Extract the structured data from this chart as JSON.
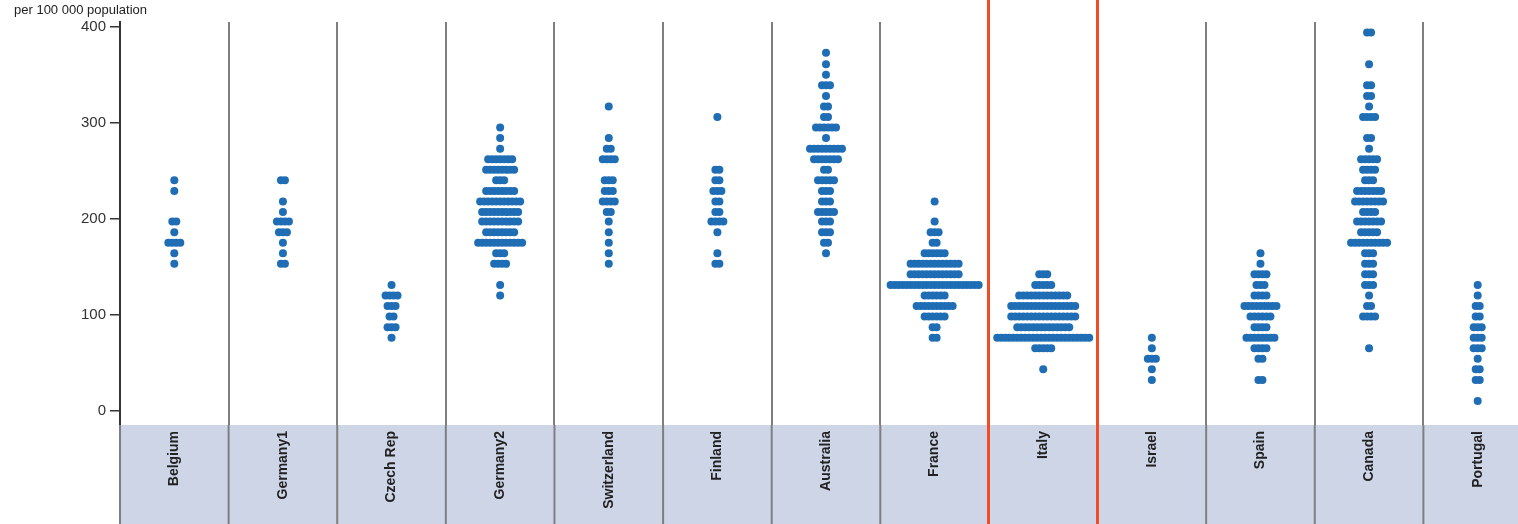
{
  "chart_data": {
    "type": "scatter",
    "ylabel": "per 100 000 population",
    "marker": "circle",
    "grid": "x",
    "categories": [
      "Belgium",
      "Germany1",
      "Czech Rep",
      "Germany2",
      "Switzerland",
      "Finland",
      "Australia",
      "France",
      "Italy",
      "Israel",
      "Spain",
      "Canada",
      "Portugal"
    ],
    "ylim": [
      -15,
      405
    ],
    "yticks": [
      0,
      100,
      200,
      300,
      400
    ],
    "series": [
      {
        "color": "#1f6db4",
        "x": [
          "Belgium",
          "Belgium",
          "Belgium",
          "Belgium",
          "Belgium",
          "Belgium",
          "Belgium",
          "Belgium",
          "Belgium",
          "Belgium",
          "Belgium"
        ],
        "values": [
          240,
          229,
          197,
          197,
          186,
          175,
          175,
          175,
          175,
          164,
          153
        ]
      },
      {
        "color": "#1f6db4",
        "x": [
          "Germany1",
          "Germany1",
          "Germany1",
          "Germany1",
          "Germany1",
          "Germany1",
          "Germany1",
          "Germany1",
          "Germany1",
          "Germany1",
          "Germany1",
          "Germany1",
          "Germany1",
          "Germany1",
          "Germany1"
        ],
        "values": [
          240,
          240,
          218,
          207,
          197,
          197,
          197,
          197,
          186,
          186,
          186,
          175,
          164,
          153,
          153
        ]
      },
      {
        "color": "#1f6db4",
        "x": [
          "Czech Rep",
          "Czech Rep",
          "Czech Rep",
          "Czech Rep",
          "Czech Rep",
          "Czech Rep",
          "Czech Rep",
          "Czech Rep",
          "Czech Rep",
          "Czech Rep",
          "Czech Rep",
          "Czech Rep",
          "Czech Rep",
          "Czech Rep"
        ],
        "values": [
          131,
          120,
          120,
          120,
          120,
          109,
          109,
          109,
          98,
          98,
          87,
          87,
          87,
          76
        ]
      },
      {
        "color": "#1f6db4",
        "x": [
          "Germany2",
          "Germany2",
          "Germany2",
          "Germany2",
          "Germany2",
          "Germany2",
          "Germany2",
          "Germany2",
          "Germany2",
          "Germany2",
          "Germany2",
          "Germany2",
          "Germany2",
          "Germany2",
          "Germany2",
          "Germany2",
          "Germany2",
          "Germany2",
          "Germany2",
          "Germany2",
          "Germany2",
          "Germany2",
          "Germany2",
          "Germany2",
          "Germany2",
          "Germany2",
          "Germany2",
          "Germany2",
          "Germany2",
          "Germany2",
          "Germany2",
          "Germany2",
          "Germany2",
          "Germany2",
          "Germany2",
          "Germany2",
          "Germany2",
          "Germany2",
          "Germany2",
          "Germany2",
          "Germany2",
          "Germany2",
          "Germany2",
          "Germany2",
          "Germany2",
          "Germany2",
          "Germany2",
          "Germany2",
          "Germany2",
          "Germany2",
          "Germany2",
          "Germany2",
          "Germany2",
          "Germany2",
          "Germany2",
          "Germany2",
          "Germany2",
          "Germany2",
          "Germany2",
          "Germany2",
          "Germany2",
          "Germany2",
          "Germany2",
          "Germany2",
          "Germany2",
          "Germany2",
          "Germany2",
          "Germany2",
          "Germany2",
          "Germany2",
          "Germany2",
          "Germany2",
          "Germany2",
          "Germany2",
          "Germany2",
          "Germany2",
          "Germany2",
          "Germany2",
          "Germany2",
          "Germany2",
          "Germany2",
          "Germany2",
          "Germany2",
          "Germany2",
          "Germany2",
          "Germany2",
          "Germany2",
          "Germany2",
          "Germany2"
        ],
        "values": [
          295,
          284,
          273,
          262,
          262,
          262,
          262,
          262,
          262,
          262,
          251,
          251,
          251,
          251,
          251,
          251,
          251,
          251,
          240,
          240,
          240,
          229,
          229,
          229,
          229,
          229,
          229,
          229,
          229,
          218,
          218,
          218,
          218,
          218,
          218,
          218,
          218,
          218,
          218,
          218,
          207,
          207,
          207,
          207,
          207,
          207,
          207,
          207,
          207,
          207,
          197,
          197,
          197,
          197,
          197,
          197,
          197,
          197,
          197,
          197,
          186,
          186,
          186,
          186,
          186,
          186,
          186,
          186,
          175,
          175,
          175,
          175,
          175,
          175,
          175,
          175,
          175,
          175,
          175,
          175,
          164,
          164,
          164,
          153,
          153,
          153,
          153,
          131,
          120
        ]
      },
      {
        "color": "#1f6db4",
        "x": [
          "Switzerland",
          "Switzerland",
          "Switzerland",
          "Switzerland",
          "Switzerland",
          "Switzerland",
          "Switzerland",
          "Switzerland",
          "Switzerland",
          "Switzerland",
          "Switzerland",
          "Switzerland",
          "Switzerland",
          "Switzerland",
          "Switzerland",
          "Switzerland",
          "Switzerland",
          "Switzerland",
          "Switzerland",
          "Switzerland",
          "Switzerland",
          "Switzerland",
          "Switzerland",
          "Switzerland",
          "Switzerland"
        ],
        "values": [
          317,
          284,
          273,
          273,
          262,
          262,
          262,
          262,
          240,
          240,
          240,
          229,
          229,
          229,
          218,
          218,
          218,
          218,
          207,
          207,
          197,
          186,
          175,
          164,
          153
        ]
      },
      {
        "color": "#1f6db4",
        "x": [
          "Finland",
          "Finland",
          "Finland",
          "Finland",
          "Finland",
          "Finland",
          "Finland",
          "Finland",
          "Finland",
          "Finland",
          "Finland",
          "Finland",
          "Finland",
          "Finland",
          "Finland",
          "Finland",
          "Finland",
          "Finland",
          "Finland",
          "Finland"
        ],
        "values": [
          306,
          251,
          251,
          240,
          240,
          229,
          229,
          229,
          218,
          218,
          207,
          207,
          197,
          197,
          197,
          197,
          186,
          164,
          153,
          153
        ]
      },
      {
        "color": "#1f6db4",
        "x": [
          "Australia",
          "Australia",
          "Australia",
          "Australia",
          "Australia",
          "Australia",
          "Australia",
          "Australia",
          "Australia",
          "Australia",
          "Australia",
          "Australia",
          "Australia",
          "Australia",
          "Australia",
          "Australia",
          "Australia",
          "Australia",
          "Australia",
          "Australia",
          "Australia",
          "Australia",
          "Australia",
          "Australia",
          "Australia",
          "Australia",
          "Australia",
          "Australia",
          "Australia",
          "Australia",
          "Australia",
          "Australia",
          "Australia",
          "Australia",
          "Australia",
          "Australia",
          "Australia",
          "Australia",
          "Australia",
          "Australia",
          "Australia",
          "Australia",
          "Australia",
          "Australia",
          "Australia",
          "Australia",
          "Australia",
          "Australia",
          "Australia",
          "Australia",
          "Australia",
          "Australia",
          "Australia",
          "Australia",
          "Australia",
          "Australia",
          "Australia",
          "Australia",
          "Australia",
          "Australia",
          "Australia"
        ],
        "values": [
          373,
          361,
          350,
          339,
          339,
          339,
          328,
          317,
          317,
          306,
          306,
          295,
          295,
          295,
          295,
          295,
          295,
          284,
          273,
          273,
          273,
          273,
          273,
          273,
          273,
          273,
          273,
          262,
          262,
          262,
          262,
          262,
          262,
          262,
          251,
          251,
          240,
          240,
          240,
          240,
          240,
          229,
          229,
          229,
          218,
          218,
          218,
          207,
          207,
          207,
          207,
          207,
          197,
          197,
          197,
          186,
          186,
          186,
          175,
          175,
          164
        ]
      },
      {
        "color": "#1f6db4",
        "x": [
          "France",
          "France",
          "France",
          "France",
          "France",
          "France",
          "France",
          "France",
          "France",
          "France",
          "France",
          "France",
          "France",
          "France",
          "France",
          "France",
          "France",
          "France",
          "France",
          "France",
          "France",
          "France",
          "France",
          "France",
          "France",
          "France",
          "France",
          "France",
          "France",
          "France",
          "France",
          "France",
          "France",
          "France",
          "France",
          "France",
          "France",
          "France",
          "France",
          "France",
          "France",
          "France",
          "France",
          "France",
          "France",
          "France",
          "France",
          "France",
          "France",
          "France",
          "France",
          "France",
          "France",
          "France",
          "France",
          "France",
          "France",
          "France",
          "France",
          "France",
          "France",
          "France",
          "France",
          "France",
          "France",
          "France",
          "France",
          "France",
          "France",
          "France",
          "France",
          "France",
          "France",
          "France",
          "France",
          "France",
          "France",
          "France",
          "France",
          "France",
          "France",
          "France",
          "France",
          "France",
          "France",
          "France",
          "France",
          "France"
        ],
        "values": [
          218,
          197,
          186,
          186,
          186,
          175,
          175,
          164,
          164,
          164,
          164,
          164,
          164,
          153,
          153,
          153,
          153,
          153,
          153,
          153,
          153,
          153,
          153,
          153,
          153,
          153,
          142,
          142,
          142,
          142,
          142,
          142,
          142,
          142,
          142,
          142,
          142,
          142,
          142,
          131,
          131,
          131,
          131,
          131,
          131,
          131,
          131,
          131,
          131,
          131,
          131,
          131,
          131,
          131,
          131,
          131,
          131,
          131,
          131,
          131,
          131,
          131,
          120,
          120,
          120,
          120,
          120,
          120,
          109,
          109,
          109,
          109,
          109,
          109,
          109,
          109,
          109,
          109,
          98,
          98,
          98,
          98,
          98,
          98,
          87,
          87,
          76,
          76
        ]
      },
      {
        "color": "#1f6db4",
        "x": [
          "Italy",
          "Italy",
          "Italy",
          "Italy",
          "Italy",
          "Italy",
          "Italy",
          "Italy",
          "Italy",
          "Italy",
          "Italy",
          "Italy",
          "Italy",
          "Italy",
          "Italy",
          "Italy",
          "Italy",
          "Italy",
          "Italy",
          "Italy",
          "Italy",
          "Italy",
          "Italy",
          "Italy",
          "Italy",
          "Italy",
          "Italy",
          "Italy",
          "Italy",
          "Italy",
          "Italy",
          "Italy",
          "Italy",
          "Italy",
          "Italy",
          "Italy",
          "Italy",
          "Italy",
          "Italy",
          "Italy",
          "Italy",
          "Italy",
          "Italy",
          "Italy",
          "Italy",
          "Italy",
          "Italy",
          "Italy",
          "Italy",
          "Italy",
          "Italy",
          "Italy",
          "Italy",
          "Italy",
          "Italy",
          "Italy",
          "Italy",
          "Italy",
          "Italy",
          "Italy",
          "Italy",
          "Italy",
          "Italy",
          "Italy",
          "Italy",
          "Italy",
          "Italy",
          "Italy",
          "Italy",
          "Italy",
          "Italy",
          "Italy",
          "Italy",
          "Italy",
          "Italy",
          "Italy",
          "Italy",
          "Italy",
          "Italy",
          "Italy",
          "Italy",
          "Italy",
          "Italy",
          "Italy",
          "Italy",
          "Italy",
          "Italy",
          "Italy",
          "Italy",
          "Italy",
          "Italy",
          "Italy",
          "Italy",
          "Italy",
          "Italy",
          "Italy",
          "Italy",
          "Italy",
          "Italy"
        ],
        "values": [
          142,
          142,
          142,
          131,
          131,
          131,
          131,
          131,
          120,
          120,
          120,
          120,
          120,
          120,
          120,
          120,
          120,
          120,
          120,
          120,
          120,
          109,
          109,
          109,
          109,
          109,
          109,
          109,
          109,
          109,
          109,
          109,
          109,
          109,
          109,
          109,
          109,
          109,
          98,
          98,
          98,
          98,
          98,
          98,
          98,
          98,
          98,
          98,
          98,
          98,
          98,
          98,
          98,
          98,
          98,
          87,
          87,
          87,
          87,
          87,
          87,
          87,
          87,
          87,
          87,
          87,
          87,
          87,
          87,
          76,
          76,
          76,
          76,
          76,
          76,
          76,
          76,
          76,
          76,
          76,
          76,
          76,
          76,
          76,
          76,
          76,
          76,
          76,
          76,
          76,
          76,
          76,
          76,
          65,
          65,
          65,
          65,
          65,
          43
        ]
      },
      {
        "color": "#1f6db4",
        "x": [
          "Israel",
          "Israel",
          "Israel",
          "Israel",
          "Israel",
          "Israel",
          "Israel"
        ],
        "values": [
          76,
          65,
          54,
          54,
          54,
          43,
          32
        ]
      },
      {
        "color": "#1f6db4",
        "x": [
          "Spain",
          "Spain",
          "Spain",
          "Spain",
          "Spain",
          "Spain",
          "Spain",
          "Spain",
          "Spain",
          "Spain",
          "Spain",
          "Spain",
          "Spain",
          "Spain",
          "Spain",
          "Spain",
          "Spain",
          "Spain",
          "Spain",
          "Spain",
          "Spain",
          "Spain",
          "Spain",
          "Spain",
          "Spain",
          "Spain",
          "Spain",
          "Spain",
          "Spain",
          "Spain",
          "Spain",
          "Spain",
          "Spain",
          "Spain",
          "Spain",
          "Spain",
          "Spain",
          "Spain",
          "Spain",
          "Spain",
          "Spain",
          "Spain",
          "Spain",
          "Spain",
          "Spain",
          "Spain",
          "Spain",
          "Spain"
        ],
        "values": [
          164,
          153,
          142,
          142,
          142,
          142,
          131,
          131,
          131,
          120,
          120,
          120,
          120,
          109,
          109,
          109,
          109,
          109,
          109,
          109,
          109,
          109,
          98,
          98,
          98,
          98,
          98,
          98,
          87,
          87,
          87,
          87,
          76,
          76,
          76,
          76,
          76,
          76,
          76,
          76,
          65,
          65,
          65,
          65,
          54,
          54,
          32,
          32
        ]
      },
      {
        "color": "#1f6db4",
        "x": [
          "Canada",
          "Canada",
          "Canada",
          "Canada",
          "Canada",
          "Canada",
          "Canada",
          "Canada",
          "Canada",
          "Canada",
          "Canada",
          "Canada",
          "Canada",
          "Canada",
          "Canada",
          "Canada",
          "Canada",
          "Canada",
          "Canada",
          "Canada",
          "Canada",
          "Canada",
          "Canada",
          "Canada",
          "Canada",
          "Canada",
          "Canada",
          "Canada",
          "Canada",
          "Canada",
          "Canada",
          "Canada",
          "Canada",
          "Canada",
          "Canada",
          "Canada",
          "Canada",
          "Canada",
          "Canada",
          "Canada",
          "Canada",
          "Canada",
          "Canada",
          "Canada",
          "Canada",
          "Canada",
          "Canada",
          "Canada",
          "Canada",
          "Canada",
          "Canada",
          "Canada",
          "Canada",
          "Canada",
          "Canada",
          "Canada",
          "Canada",
          "Canada",
          "Canada",
          "Canada",
          "Canada",
          "Canada",
          "Canada",
          "Canada",
          "Canada",
          "Canada",
          "Canada",
          "Canada",
          "Canada",
          "Canada",
          "Canada",
          "Canada",
          "Canada",
          "Canada",
          "Canada",
          "Canada",
          "Canada",
          "Canada",
          "Canada",
          "Canada",
          "Canada",
          "Canada",
          "Canada",
          "Canada",
          "Canada",
          "Canada",
          "Canada",
          "Canada"
        ],
        "values": [
          394,
          394,
          361,
          339,
          339,
          328,
          328,
          317,
          306,
          306,
          306,
          306,
          284,
          284,
          273,
          262,
          262,
          262,
          262,
          262,
          251,
          251,
          251,
          251,
          240,
          240,
          240,
          229,
          229,
          229,
          229,
          229,
          229,
          229,
          218,
          218,
          218,
          218,
          218,
          218,
          218,
          218,
          207,
          207,
          207,
          207,
          197,
          197,
          197,
          197,
          197,
          197,
          197,
          186,
          186,
          186,
          186,
          186,
          175,
          175,
          175,
          175,
          175,
          175,
          175,
          175,
          175,
          175,
          164,
          164,
          164,
          153,
          153,
          153,
          142,
          142,
          142,
          131,
          131,
          131,
          120,
          109,
          109,
          98,
          98,
          98,
          98,
          65
        ]
      },
      {
        "color": "#1f6db4",
        "x": [
          "Portugal",
          "Portugal",
          "Portugal",
          "Portugal",
          "Portugal",
          "Portugal",
          "Portugal",
          "Portugal",
          "Portugal",
          "Portugal",
          "Portugal",
          "Portugal",
          "Portugal",
          "Portugal",
          "Portugal",
          "Portugal",
          "Portugal",
          "Portugal",
          "Portugal",
          "Portugal",
          "Portugal"
        ],
        "values": [
          131,
          120,
          109,
          109,
          98,
          98,
          87,
          87,
          87,
          76,
          76,
          76,
          65,
          65,
          65,
          54,
          43,
          43,
          32,
          32,
          10
        ]
      }
    ]
  }
}
